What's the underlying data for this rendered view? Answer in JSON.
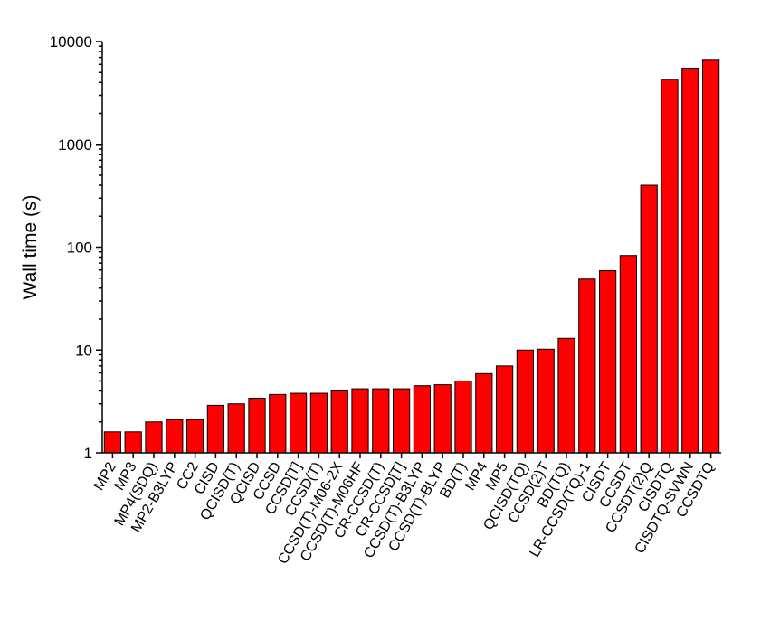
{
  "chart_data": {
    "type": "bar",
    "ylabel": "Wall time (s)",
    "xlabel": "",
    "yscale": "log",
    "ylim": [
      1,
      10000
    ],
    "yticks": [
      1,
      10,
      100,
      1000,
      10000
    ],
    "yticklabels": [
      "1",
      "10",
      "100",
      "1000",
      "10000"
    ],
    "bar_color": "#ff0000",
    "grid": false,
    "categories": [
      "MP2",
      "MP3",
      "MP4(SDQ)",
      "MP2-B3LYP",
      "CC2",
      "CISD",
      "QCISD(T)",
      "QCISD",
      "CCSD",
      "CCSD[T]",
      "CCSD(T)",
      "CCSD(T)-M06-2X",
      "CCSD(T)-M06HF",
      "CR-CCSD(T)",
      "CR-CCSD[T]",
      "CCSD(T)-B3LYP",
      "CCSD(T)-BLYP",
      "BD(T)",
      "MP4",
      "MP5",
      "QCISD(TQ)",
      "CCSD(2)T",
      "BD(TQ)",
      "LR-CCSD(TQ)-1",
      "CISDT",
      "CCSDT",
      "CCSDT(2)Q",
      "CISDTQ",
      "CISDTQ-SVWN",
      "CCSDTQ"
    ],
    "values": [
      1.6,
      1.6,
      2.0,
      2.1,
      2.1,
      2.9,
      3.0,
      3.4,
      3.7,
      3.8,
      3.8,
      4.0,
      4.2,
      4.2,
      4.2,
      4.5,
      4.6,
      5.0,
      5.9,
      7.0,
      10.0,
      10.2,
      13.0,
      49,
      59,
      83,
      400,
      4300,
      5500,
      6700
    ]
  }
}
